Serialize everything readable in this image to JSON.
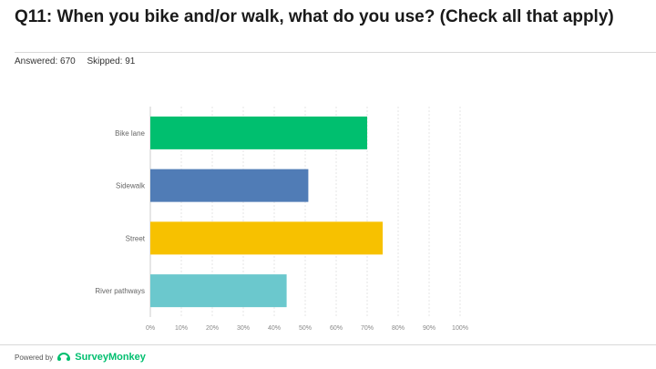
{
  "question": {
    "title": "Q11: When you bike and/or walk, what do you use? (Check all that apply)",
    "answered": "Answered: 670",
    "skipped": "Skipped: 91"
  },
  "footer": {
    "powered_by": "Powered by",
    "brand": "SurveyMonkey"
  },
  "colors": {
    "bike_lane": "#00bf6f",
    "sidewalk": "#507cb6",
    "street": "#f7c100",
    "river_pathways": "#6bc8cd",
    "grid": "#e6e6e6",
    "tick_text": "#888888"
  },
  "chart_data": {
    "type": "bar",
    "orientation": "horizontal",
    "categories": [
      "Bike lane",
      "Sidewalk",
      "Street",
      "River pathways"
    ],
    "values": [
      70,
      51,
      75,
      44
    ],
    "value_unit": "%",
    "xlim": [
      0,
      100
    ],
    "x_ticks": [
      "0%",
      "10%",
      "20%",
      "30%",
      "40%",
      "50%",
      "60%",
      "70%",
      "80%",
      "90%",
      "100%"
    ],
    "grid": true
  }
}
